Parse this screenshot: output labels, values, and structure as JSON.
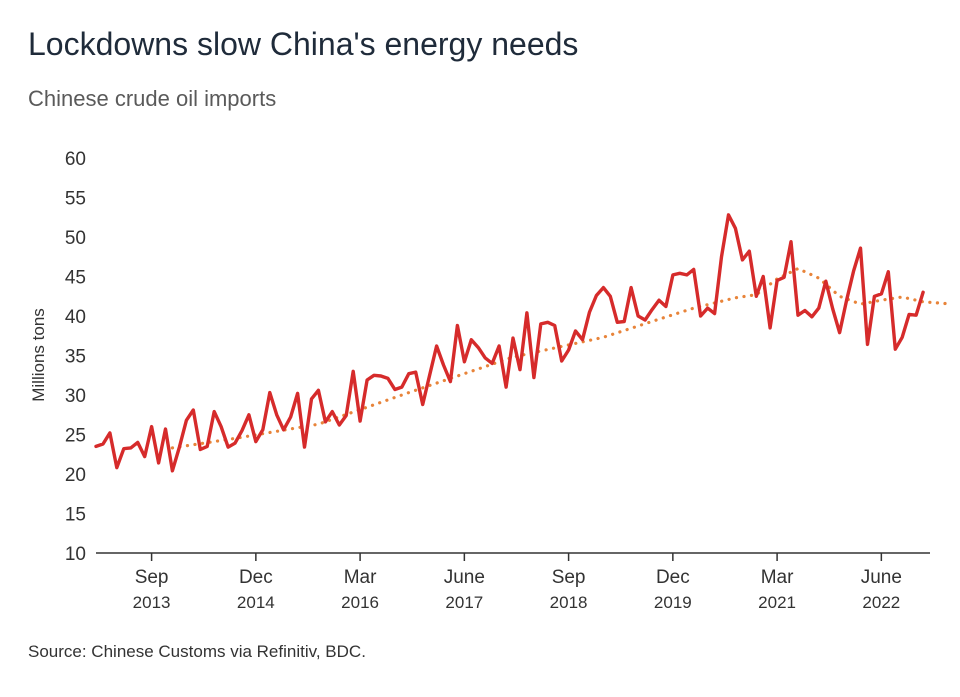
{
  "header": {
    "title": "Lockdowns slow China's energy needs",
    "subtitle": "Chinese crude oil imports"
  },
  "footer": {
    "source": "Source: Chinese Customs via Refinitiv, BDC."
  },
  "colors": {
    "actual_line": "#d62b2b",
    "trend_line": "#e8843a",
    "axis": "#333333",
    "text": "#333333"
  },
  "chart_data": {
    "type": "line",
    "ylabel": "Millions tons",
    "ylim": [
      10,
      60
    ],
    "yticks": [
      "10",
      "15",
      "20",
      "25",
      "30",
      "35",
      "40",
      "45",
      "50",
      "55",
      "60"
    ],
    "grid": false,
    "xticks": [
      {
        "month": "Sep",
        "year": "2013",
        "index": 8
      },
      {
        "month": "Dec",
        "year": "2014",
        "index": 23
      },
      {
        "month": "Mar",
        "year": "2016",
        "index": 38
      },
      {
        "month": "June",
        "year": "2017",
        "index": 53
      },
      {
        "month": "Sep",
        "year": "2018",
        "index": 68
      },
      {
        "month": "Dec",
        "year": "2019",
        "index": 83
      },
      {
        "month": "Mar",
        "year": "2021",
        "index": 98
      },
      {
        "month": "June",
        "year": "2022",
        "index": 113
      }
    ],
    "series": [
      {
        "style": "solid",
        "values": [
          23.5,
          23.8,
          25.2,
          20.8,
          23.2,
          23.3,
          24.0,
          22.2,
          26.0,
          21.4,
          25.7,
          20.4,
          23.4,
          26.8,
          28.1,
          23.1,
          23.5,
          27.9,
          26.0,
          23.4,
          23.9,
          25.5,
          27.5,
          24.1,
          25.6,
          30.3,
          27.5,
          25.6,
          27.2,
          30.2,
          23.4,
          29.5,
          30.6,
          26.6,
          27.9,
          26.2,
          27.4,
          33.0,
          26.7,
          31.9,
          32.5,
          32.4,
          32.1,
          30.7,
          31.0,
          32.7,
          32.9,
          28.8,
          32.5,
          36.2,
          33.8,
          31.7,
          38.8,
          34.2,
          37.0,
          36.0,
          34.7,
          34.0,
          36.2,
          31.0,
          37.2,
          33.2,
          40.4,
          32.2,
          39.0,
          39.2,
          38.8,
          34.3,
          35.7,
          38.1,
          37.0,
          40.5,
          42.6,
          43.6,
          42.5,
          39.2,
          39.3,
          43.6,
          40.0,
          39.5,
          40.8,
          42.0,
          41.2,
          45.2,
          45.4,
          45.2,
          45.9,
          40.0,
          41.0,
          40.3,
          47.5,
          52.8,
          51.1,
          47.1,
          48.2,
          42.5,
          45.0,
          38.5,
          44.5,
          44.9,
          49.4,
          40.1,
          40.7,
          39.9,
          41.0,
          44.4,
          40.9,
          37.9,
          42.0,
          45.7,
          48.6,
          36.4,
          42.5,
          42.8,
          45.6,
          35.8,
          37.3,
          40.2,
          40.1,
          43.0
        ]
      },
      {
        "style": "dotted",
        "trend": [
          [
            11,
            23.3
          ],
          [
            20,
            24.5
          ],
          [
            32,
            26.3
          ],
          [
            45,
            30.3
          ],
          [
            60,
            34.8
          ],
          [
            73,
            37.3
          ],
          [
            81,
            39.6
          ],
          [
            86,
            41.0
          ],
          [
            92,
            42.3
          ],
          [
            95,
            42.7
          ],
          [
            98,
            44.7
          ],
          [
            101,
            46.0
          ],
          [
            104,
            44.8
          ],
          [
            107,
            42.5
          ],
          [
            110,
            41.5
          ],
          [
            113,
            42.0
          ],
          [
            116,
            42.4
          ],
          [
            119,
            41.8
          ],
          [
            122,
            41.6
          ],
          [
            123,
            41.5
          ]
        ]
      }
    ]
  }
}
